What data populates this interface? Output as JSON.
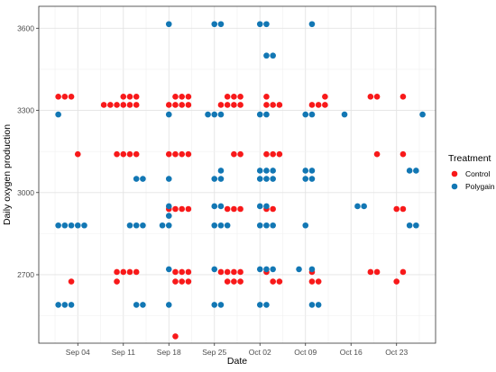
{
  "chart_data": {
    "type": "scatter",
    "title": "",
    "xlabel": "Date",
    "ylabel": "Daily oxygen production",
    "x_ticks": [
      "Sep 04",
      "Sep 11",
      "Sep 18",
      "Sep 25",
      "Oct 02",
      "Oct 09",
      "Oct 16",
      "Oct 23"
    ],
    "y_ticks": [
      2700,
      3000,
      3300,
      3600
    ],
    "xlim": [
      "2023-08-29",
      "2023-10-29"
    ],
    "ylim": [
      2450,
      3680
    ],
    "x_axis_kind": "date",
    "grid": true,
    "legend": {
      "title": "Treatment",
      "placement": "right"
    },
    "series": [
      {
        "name": "Control",
        "color": "#f8191a",
        "points": [
          {
            "x": "2023-09-01",
            "y": 3350
          },
          {
            "x": "2023-09-02",
            "y": 3350
          },
          {
            "x": "2023-09-03",
            "y": 3350
          },
          {
            "x": "2023-09-03",
            "y": 2675
          },
          {
            "x": "2023-09-04",
            "y": 3140
          },
          {
            "x": "2023-09-08",
            "y": 3320
          },
          {
            "x": "2023-09-09",
            "y": 3320
          },
          {
            "x": "2023-09-10",
            "y": 3320
          },
          {
            "x": "2023-09-11",
            "y": 3320
          },
          {
            "x": "2023-09-12",
            "y": 3320
          },
          {
            "x": "2023-09-13",
            "y": 3320
          },
          {
            "x": "2023-09-11",
            "y": 3350
          },
          {
            "x": "2023-09-12",
            "y": 3350
          },
          {
            "x": "2023-09-13",
            "y": 3350
          },
          {
            "x": "2023-09-10",
            "y": 3140
          },
          {
            "x": "2023-09-11",
            "y": 3140
          },
          {
            "x": "2023-09-12",
            "y": 3140
          },
          {
            "x": "2023-09-13",
            "y": 3140
          },
          {
            "x": "2023-09-10",
            "y": 2710
          },
          {
            "x": "2023-09-11",
            "y": 2710
          },
          {
            "x": "2023-09-12",
            "y": 2710
          },
          {
            "x": "2023-09-13",
            "y": 2710
          },
          {
            "x": "2023-09-10",
            "y": 2675
          },
          {
            "x": "2023-09-18",
            "y": 3320
          },
          {
            "x": "2023-09-19",
            "y": 3320
          },
          {
            "x": "2023-09-20",
            "y": 3320
          },
          {
            "x": "2023-09-21",
            "y": 3320
          },
          {
            "x": "2023-09-19",
            "y": 3350
          },
          {
            "x": "2023-09-20",
            "y": 3350
          },
          {
            "x": "2023-09-21",
            "y": 3350
          },
          {
            "x": "2023-09-18",
            "y": 3140
          },
          {
            "x": "2023-09-19",
            "y": 3140
          },
          {
            "x": "2023-09-20",
            "y": 3140
          },
          {
            "x": "2023-09-21",
            "y": 3140
          },
          {
            "x": "2023-09-18",
            "y": 2940
          },
          {
            "x": "2023-09-19",
            "y": 2940
          },
          {
            "x": "2023-09-20",
            "y": 2940
          },
          {
            "x": "2023-09-21",
            "y": 2940
          },
          {
            "x": "2023-09-19",
            "y": 2710
          },
          {
            "x": "2023-09-20",
            "y": 2710
          },
          {
            "x": "2023-09-21",
            "y": 2710
          },
          {
            "x": "2023-09-19",
            "y": 2675
          },
          {
            "x": "2023-09-20",
            "y": 2675
          },
          {
            "x": "2023-09-21",
            "y": 2675
          },
          {
            "x": "2023-09-19",
            "y": 2475
          },
          {
            "x": "2023-09-26",
            "y": 3320
          },
          {
            "x": "2023-09-27",
            "y": 3320
          },
          {
            "x": "2023-09-28",
            "y": 3320
          },
          {
            "x": "2023-09-29",
            "y": 3320
          },
          {
            "x": "2023-09-27",
            "y": 3350
          },
          {
            "x": "2023-09-28",
            "y": 3350
          },
          {
            "x": "2023-09-29",
            "y": 3350
          },
          {
            "x": "2023-09-28",
            "y": 3140
          },
          {
            "x": "2023-09-29",
            "y": 3140
          },
          {
            "x": "2023-09-27",
            "y": 2940
          },
          {
            "x": "2023-09-28",
            "y": 2940
          },
          {
            "x": "2023-09-29",
            "y": 2940
          },
          {
            "x": "2023-09-26",
            "y": 2710
          },
          {
            "x": "2023-09-27",
            "y": 2710
          },
          {
            "x": "2023-09-28",
            "y": 2710
          },
          {
            "x": "2023-09-29",
            "y": 2710
          },
          {
            "x": "2023-09-27",
            "y": 2675
          },
          {
            "x": "2023-09-28",
            "y": 2675
          },
          {
            "x": "2023-09-29",
            "y": 2675
          },
          {
            "x": "2023-10-03",
            "y": 3350
          },
          {
            "x": "2023-10-03",
            "y": 3320
          },
          {
            "x": "2023-10-04",
            "y": 3320
          },
          {
            "x": "2023-10-05",
            "y": 3320
          },
          {
            "x": "2023-10-03",
            "y": 3140
          },
          {
            "x": "2023-10-04",
            "y": 3140
          },
          {
            "x": "2023-10-05",
            "y": 3140
          },
          {
            "x": "2023-10-03",
            "y": 2940
          },
          {
            "x": "2023-10-04",
            "y": 2940
          },
          {
            "x": "2023-10-03",
            "y": 2710
          },
          {
            "x": "2023-10-04",
            "y": 2675
          },
          {
            "x": "2023-10-05",
            "y": 2675
          },
          {
            "x": "2023-10-10",
            "y": 3320
          },
          {
            "x": "2023-10-11",
            "y": 3320
          },
          {
            "x": "2023-10-12",
            "y": 3320
          },
          {
            "x": "2023-10-12",
            "y": 3350
          },
          {
            "x": "2023-10-10",
            "y": 2710
          },
          {
            "x": "2023-10-10",
            "y": 2675
          },
          {
            "x": "2023-10-11",
            "y": 2675
          },
          {
            "x": "2023-10-19",
            "y": 3350
          },
          {
            "x": "2023-10-20",
            "y": 3350
          },
          {
            "x": "2023-10-20",
            "y": 3140
          },
          {
            "x": "2023-10-19",
            "y": 2710
          },
          {
            "x": "2023-10-20",
            "y": 2710
          },
          {
            "x": "2023-10-24",
            "y": 3350
          },
          {
            "x": "2023-10-24",
            "y": 3140
          },
          {
            "x": "2023-10-23",
            "y": 2940
          },
          {
            "x": "2023-10-24",
            "y": 2940
          },
          {
            "x": "2023-10-24",
            "y": 2710
          },
          {
            "x": "2023-10-23",
            "y": 2675
          }
        ]
      },
      {
        "name": "Polygain",
        "color": "#1277b4",
        "points": [
          {
            "x": "2023-09-01",
            "y": 3285
          },
          {
            "x": "2023-09-01",
            "y": 2880
          },
          {
            "x": "2023-09-02",
            "y": 2880
          },
          {
            "x": "2023-09-03",
            "y": 2880
          },
          {
            "x": "2023-09-04",
            "y": 2880
          },
          {
            "x": "2023-09-05",
            "y": 2880
          },
          {
            "x": "2023-09-01",
            "y": 2590
          },
          {
            "x": "2023-09-02",
            "y": 2590
          },
          {
            "x": "2023-09-03",
            "y": 2590
          },
          {
            "x": "2023-09-13",
            "y": 3050
          },
          {
            "x": "2023-09-14",
            "y": 3050
          },
          {
            "x": "2023-09-12",
            "y": 2880
          },
          {
            "x": "2023-09-13",
            "y": 2880
          },
          {
            "x": "2023-09-14",
            "y": 2880
          },
          {
            "x": "2023-09-13",
            "y": 2590
          },
          {
            "x": "2023-09-14",
            "y": 2590
          },
          {
            "x": "2023-09-18",
            "y": 3615
          },
          {
            "x": "2023-09-18",
            "y": 3285
          },
          {
            "x": "2023-09-18",
            "y": 3050
          },
          {
            "x": "2023-09-18",
            "y": 2950
          },
          {
            "x": "2023-09-18",
            "y": 2915
          },
          {
            "x": "2023-09-17",
            "y": 2880
          },
          {
            "x": "2023-09-18",
            "y": 2880
          },
          {
            "x": "2023-09-18",
            "y": 2720
          },
          {
            "x": "2023-09-18",
            "y": 2590
          },
          {
            "x": "2023-09-25",
            "y": 3615
          },
          {
            "x": "2023-09-26",
            "y": 3615
          },
          {
            "x": "2023-09-24",
            "y": 3285
          },
          {
            "x": "2023-09-25",
            "y": 3285
          },
          {
            "x": "2023-09-26",
            "y": 3285
          },
          {
            "x": "2023-09-26",
            "y": 3080
          },
          {
            "x": "2023-09-25",
            "y": 3050
          },
          {
            "x": "2023-09-26",
            "y": 3050
          },
          {
            "x": "2023-09-25",
            "y": 2950
          },
          {
            "x": "2023-09-26",
            "y": 2950
          },
          {
            "x": "2023-09-25",
            "y": 2880
          },
          {
            "x": "2023-09-26",
            "y": 2880
          },
          {
            "x": "2023-09-27",
            "y": 2880
          },
          {
            "x": "2023-09-25",
            "y": 2720
          },
          {
            "x": "2023-09-25",
            "y": 2590
          },
          {
            "x": "2023-09-26",
            "y": 2590
          },
          {
            "x": "2023-10-02",
            "y": 3615
          },
          {
            "x": "2023-10-03",
            "y": 3615
          },
          {
            "x": "2023-10-03",
            "y": 3500
          },
          {
            "x": "2023-10-04",
            "y": 3500
          },
          {
            "x": "2023-10-02",
            "y": 3285
          },
          {
            "x": "2023-10-03",
            "y": 3285
          },
          {
            "x": "2023-10-02",
            "y": 3080
          },
          {
            "x": "2023-10-03",
            "y": 3080
          },
          {
            "x": "2023-10-04",
            "y": 3080
          },
          {
            "x": "2023-10-02",
            "y": 3050
          },
          {
            "x": "2023-10-03",
            "y": 3050
          },
          {
            "x": "2023-10-04",
            "y": 3050
          },
          {
            "x": "2023-10-02",
            "y": 2950
          },
          {
            "x": "2023-10-03",
            "y": 2950
          },
          {
            "x": "2023-10-02",
            "y": 2880
          },
          {
            "x": "2023-10-03",
            "y": 2880
          },
          {
            "x": "2023-10-04",
            "y": 2880
          },
          {
            "x": "2023-10-02",
            "y": 2720
          },
          {
            "x": "2023-10-03",
            "y": 2720
          },
          {
            "x": "2023-10-04",
            "y": 2720
          },
          {
            "x": "2023-10-02",
            "y": 2590
          },
          {
            "x": "2023-10-03",
            "y": 2590
          },
          {
            "x": "2023-10-10",
            "y": 3615
          },
          {
            "x": "2023-10-09",
            "y": 3285
          },
          {
            "x": "2023-10-10",
            "y": 3285
          },
          {
            "x": "2023-10-09",
            "y": 3080
          },
          {
            "x": "2023-10-10",
            "y": 3080
          },
          {
            "x": "2023-10-09",
            "y": 3050
          },
          {
            "x": "2023-10-10",
            "y": 3050
          },
          {
            "x": "2023-10-09",
            "y": 2880
          },
          {
            "x": "2023-10-08",
            "y": 2720
          },
          {
            "x": "2023-10-10",
            "y": 2720
          },
          {
            "x": "2023-10-10",
            "y": 2590
          },
          {
            "x": "2023-10-11",
            "y": 2590
          },
          {
            "x": "2023-10-15",
            "y": 3285
          },
          {
            "x": "2023-10-17",
            "y": 2950
          },
          {
            "x": "2023-10-18",
            "y": 2950
          },
          {
            "x": "2023-10-25",
            "y": 3080
          },
          {
            "x": "2023-10-26",
            "y": 3080
          },
          {
            "x": "2023-10-25",
            "y": 2880
          },
          {
            "x": "2023-10-26",
            "y": 2880
          },
          {
            "x": "2023-10-27",
            "y": 3285
          }
        ]
      }
    ]
  }
}
